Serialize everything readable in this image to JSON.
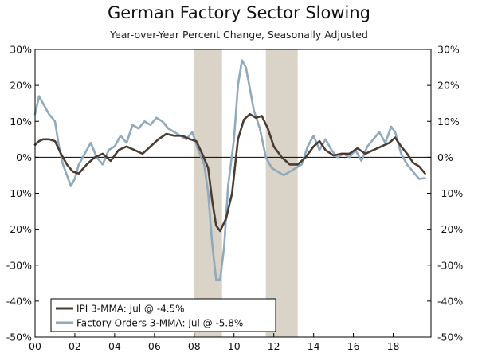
{
  "chart_data": {
    "type": "line",
    "title": "German Factory Sector Slowing",
    "subtitle": "Year-over-Year Percent Change, Seasonally Adjusted",
    "xlabel": "",
    "ylabel": "",
    "xlim": [
      2000,
      2019.9
    ],
    "ylim": [
      -50,
      30
    ],
    "x_ticks": [
      2000,
      2002,
      2004,
      2006,
      2008,
      2010,
      2012,
      2014,
      2016,
      2018
    ],
    "x_tick_labels": [
      "00",
      "02",
      "04",
      "06",
      "08",
      "10",
      "12",
      "14",
      "16",
      "18"
    ],
    "y_ticks": [
      30,
      20,
      10,
      0,
      -10,
      -20,
      -30,
      -40,
      -50
    ],
    "y_tick_labels": [
      "30%",
      "20%",
      "10%",
      "0%",
      "-10%",
      "-20%",
      "-30%",
      "-40%",
      "-50%"
    ],
    "recessions": [
      [
        2008.0,
        2009.4
      ],
      [
        2011.6,
        2013.2
      ]
    ],
    "legend": {
      "position": "bottom-left"
    },
    "colors": {
      "ipi": "#4a3b33",
      "orders": "#8fa9bd",
      "recession": "#d9d4c7",
      "axis": "#000000"
    },
    "series": [
      {
        "name": "IPI 3-MMA: Jul @ -4.5%",
        "color": "#4a3b33",
        "x": [
          2000.0,
          2000.2,
          2000.4,
          2000.7,
          2001.0,
          2001.3,
          2001.6,
          2001.9,
          2002.2,
          2002.6,
          2003.0,
          2003.4,
          2003.8,
          2004.2,
          2004.6,
          2005.0,
          2005.4,
          2005.8,
          2006.2,
          2006.6,
          2007.0,
          2007.4,
          2007.8,
          2008.1,
          2008.4,
          2008.7,
          2008.9,
          2009.1,
          2009.3,
          2009.6,
          2009.9,
          2010.2,
          2010.5,
          2010.8,
          2011.1,
          2011.4,
          2011.7,
          2012.0,
          2012.4,
          2012.8,
          2013.2,
          2013.6,
          2014.0,
          2014.3,
          2014.6,
          2015.0,
          2015.4,
          2015.8,
          2016.2,
          2016.6,
          2017.0,
          2017.4,
          2017.8,
          2018.1,
          2018.4,
          2018.7,
          2019.0,
          2019.3,
          2019.6
        ],
        "values": [
          3.5,
          4.5,
          5.0,
          5.0,
          4.5,
          1.0,
          -2.0,
          -4.0,
          -4.5,
          -2.0,
          0.0,
          1.0,
          -1.0,
          2.0,
          3.0,
          2.0,
          1.0,
          3.0,
          5.0,
          6.5,
          6.0,
          6.0,
          5.0,
          4.5,
          1.0,
          -3.0,
          -12.0,
          -19.0,
          -20.5,
          -17.0,
          -10.0,
          5.0,
          10.5,
          12.0,
          11.0,
          11.5,
          8.0,
          3.0,
          0.0,
          -2.0,
          -2.0,
          0.0,
          3.0,
          4.5,
          2.0,
          0.5,
          1.0,
          1.0,
          2.5,
          1.0,
          2.0,
          3.0,
          4.0,
          5.5,
          3.0,
          1.0,
          -1.5,
          -2.5,
          -4.5
        ]
      },
      {
        "name": "Factory Orders 3-MMA: Jul @ -5.8%",
        "color": "#8fa9bd",
        "x": [
          2000.0,
          2000.2,
          2000.4,
          2000.7,
          2001.0,
          2001.2,
          2001.4,
          2001.6,
          2001.8,
          2002.0,
          2002.2,
          2002.5,
          2002.8,
          2003.1,
          2003.4,
          2003.7,
          2004.0,
          2004.3,
          2004.6,
          2004.9,
          2005.2,
          2005.5,
          2005.8,
          2006.1,
          2006.4,
          2006.7,
          2007.0,
          2007.3,
          2007.6,
          2007.9,
          2008.2,
          2008.5,
          2008.7,
          2008.9,
          2009.1,
          2009.3,
          2009.5,
          2009.7,
          2010.0,
          2010.2,
          2010.4,
          2010.6,
          2010.8,
          2011.0,
          2011.3,
          2011.6,
          2011.9,
          2012.2,
          2012.5,
          2012.8,
          2013.1,
          2013.4,
          2013.7,
          2014.0,
          2014.3,
          2014.6,
          2014.9,
          2015.2,
          2015.5,
          2015.8,
          2016.1,
          2016.4,
          2016.7,
          2017.0,
          2017.3,
          2017.6,
          2017.9,
          2018.1,
          2018.4,
          2018.7,
          2019.0,
          2019.3,
          2019.6
        ],
        "values": [
          12.0,
          17.0,
          15.0,
          12.0,
          10.0,
          3.0,
          -2.0,
          -5.0,
          -8.0,
          -6.0,
          -2.0,
          1.0,
          4.0,
          0.0,
          -2.0,
          2.0,
          3.0,
          6.0,
          4.0,
          9.0,
          8.0,
          10.0,
          9.0,
          11.0,
          10.0,
          8.0,
          7.0,
          6.0,
          5.0,
          7.0,
          2.0,
          -2.0,
          -10.0,
          -24.0,
          -34.0,
          -34.0,
          -25.0,
          -8.0,
          5.0,
          20.0,
          27.0,
          25.0,
          19.0,
          13.0,
          8.0,
          0.0,
          -3.0,
          -4.0,
          -5.0,
          -4.0,
          -3.0,
          -2.0,
          3.0,
          6.0,
          2.0,
          5.0,
          2.0,
          0.0,
          1.0,
          0.0,
          2.0,
          -1.0,
          3.0,
          5.0,
          7.0,
          4.0,
          8.5,
          7.0,
          1.0,
          -2.0,
          -4.0,
          -6.0,
          -5.8
        ]
      }
    ]
  }
}
